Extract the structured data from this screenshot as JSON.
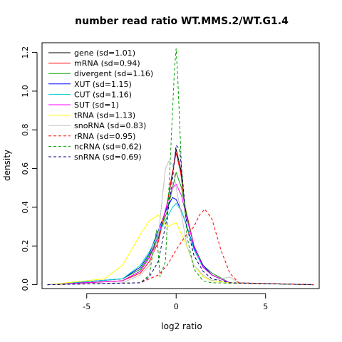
{
  "chart_data": {
    "type": "line",
    "title": "number read ratio WT.MMS.2/WT.G1.4",
    "xlabel": "log2 ratio",
    "ylabel": "density",
    "xlim": [
      -7.5,
      8
    ],
    "ylim": [
      -0.02,
      1.25
    ],
    "x_ticks": [
      -5,
      0,
      5
    ],
    "x_tick_labels": [
      "-5",
      "0",
      "5"
    ],
    "y_ticks": [
      0.0,
      0.2,
      0.4,
      0.6,
      0.8,
      1.0,
      1.2
    ],
    "y_tick_labels": [
      "0.0",
      "0.2",
      "0.4",
      "0.6",
      "0.8",
      "1.0",
      "1.2"
    ],
    "grid": false,
    "legend_position": "top-left",
    "series": [
      {
        "name": "gene (sd=1.01)",
        "color": "#000000",
        "dash": "solid",
        "x": [
          -7.2,
          -3,
          -2,
          -1.5,
          -1,
          -0.5,
          -0.25,
          0,
          0.25,
          0.5,
          1,
          1.5,
          2,
          3,
          7.7
        ],
        "y": [
          0,
          0.02,
          0.07,
          0.14,
          0.24,
          0.42,
          0.55,
          0.7,
          0.6,
          0.4,
          0.2,
          0.1,
          0.05,
          0.01,
          0
        ]
      },
      {
        "name": "mRNA (sd=0.94)",
        "color": "#ff0000",
        "dash": "solid",
        "x": [
          -7.2,
          -3,
          -2,
          -1.5,
          -1,
          -0.5,
          -0.25,
          0,
          0.25,
          0.5,
          1,
          1.5,
          2,
          3,
          7.7
        ],
        "y": [
          0,
          0.02,
          0.06,
          0.12,
          0.22,
          0.42,
          0.56,
          0.68,
          0.58,
          0.4,
          0.2,
          0.1,
          0.05,
          0.01,
          0
        ]
      },
      {
        "name": "divergent (sd=1.16)",
        "color": "#00a000",
        "dash": "solid",
        "x": [
          -7.2,
          -3,
          -2,
          -1.5,
          -1,
          -0.5,
          -0.2,
          0,
          0.3,
          0.6,
          1,
          1.5,
          2,
          3,
          7.7
        ],
        "y": [
          0,
          0.03,
          0.08,
          0.15,
          0.25,
          0.38,
          0.5,
          0.58,
          0.5,
          0.35,
          0.2,
          0.1,
          0.06,
          0.01,
          0
        ]
      },
      {
        "name": "XUT (sd=1.15)",
        "color": "#0000ff",
        "dash": "solid",
        "x": [
          -7.2,
          -3,
          -2,
          -1.5,
          -1,
          -0.5,
          -0.2,
          0,
          0.3,
          0.6,
          1,
          1.5,
          2,
          3,
          7.7
        ],
        "y": [
          0,
          0.03,
          0.09,
          0.16,
          0.28,
          0.4,
          0.45,
          0.44,
          0.38,
          0.3,
          0.19,
          0.1,
          0.05,
          0.01,
          0
        ]
      },
      {
        "name": "CUT (sd=1.16)",
        "color": "#00ced1",
        "dash": "solid",
        "x": [
          -7.2,
          -3,
          -2,
          -1.5,
          -1,
          -0.5,
          -0.2,
          0,
          0.3,
          0.6,
          1,
          1.5,
          2,
          3,
          7.7
        ],
        "y": [
          0,
          0.03,
          0.1,
          0.17,
          0.26,
          0.35,
          0.4,
          0.42,
          0.38,
          0.3,
          0.18,
          0.09,
          0.05,
          0.01,
          0
        ]
      },
      {
        "name": "SUT (sd=1)",
        "color": "#ff00ff",
        "dash": "solid",
        "x": [
          -7.2,
          -3,
          -2,
          -1.5,
          -1,
          -0.5,
          -0.2,
          0,
          0.3,
          0.6,
          1,
          1.5,
          2,
          3,
          7.7
        ],
        "y": [
          0,
          0.02,
          0.07,
          0.14,
          0.25,
          0.42,
          0.5,
          0.52,
          0.46,
          0.34,
          0.2,
          0.09,
          0.05,
          0.01,
          0
        ]
      },
      {
        "name": "tRNA (sd=1.13)",
        "color": "#ffff00",
        "dash": "solid",
        "x": [
          -7.2,
          -4,
          -3,
          -2.5,
          -2,
          -1.5,
          -1,
          -0.5,
          0,
          0.5,
          1,
          1.5,
          2,
          3,
          7.7
        ],
        "y": [
          0,
          0.03,
          0.1,
          0.18,
          0.26,
          0.33,
          0.36,
          0.3,
          0.32,
          0.22,
          0.1,
          0.04,
          0.02,
          0.01,
          0
        ]
      },
      {
        "name": "snoRNA (sd=0.83)",
        "color": "#c0c0c0",
        "dash": "solid",
        "x": [
          -7.2,
          -3,
          -2,
          -1.5,
          -1,
          -0.6,
          -0.4,
          -0.2,
          0,
          0.3,
          0.6,
          1,
          1.5,
          2,
          3,
          3.5,
          7.7
        ],
        "y": [
          0,
          0.01,
          0.05,
          0.1,
          0.25,
          0.6,
          0.64,
          0.62,
          0.5,
          0.36,
          0.2,
          0.1,
          0.05,
          0.02,
          0.04,
          0.01,
          0
        ]
      },
      {
        "name": "rRNA (sd=0.95)",
        "color": "#ff0000",
        "dash": "dashed",
        "x": [
          -7.2,
          -2,
          -1,
          -0.5,
          0,
          0.5,
          0.8,
          1,
          1.3,
          1.6,
          2,
          2.5,
          3,
          3.5,
          7.7
        ],
        "y": [
          0,
          0.01,
          0.05,
          0.1,
          0.18,
          0.25,
          0.28,
          0.3,
          0.36,
          0.39,
          0.34,
          0.18,
          0.06,
          0.01,
          0
        ]
      },
      {
        "name": "ncRNA (sd=0.62)",
        "color": "#00a000",
        "dash": "dashed",
        "x": [
          -7.2,
          -2,
          -1.5,
          -1.1,
          -0.9,
          -0.6,
          -0.3,
          -0.1,
          0,
          0.1,
          0.3,
          0.6,
          1,
          1.5,
          2,
          7.7
        ],
        "y": [
          0,
          0.01,
          0.05,
          0.28,
          0.04,
          0.12,
          0.7,
          1.1,
          1.22,
          1.05,
          0.6,
          0.25,
          0.08,
          0.02,
          0.01,
          0
        ]
      },
      {
        "name": "snRNA (sd=0.69)",
        "color": "#000080",
        "dash": "dashed",
        "x": [
          -7.2,
          -2,
          -1.5,
          -1,
          -0.5,
          -0.2,
          0,
          0.2,
          0.4,
          0.6,
          1,
          1.5,
          2,
          3,
          7.7
        ],
        "y": [
          0,
          0.01,
          0.04,
          0.12,
          0.35,
          0.55,
          0.72,
          0.7,
          0.5,
          0.3,
          0.15,
          0.07,
          0.03,
          0.01,
          0
        ]
      }
    ]
  }
}
